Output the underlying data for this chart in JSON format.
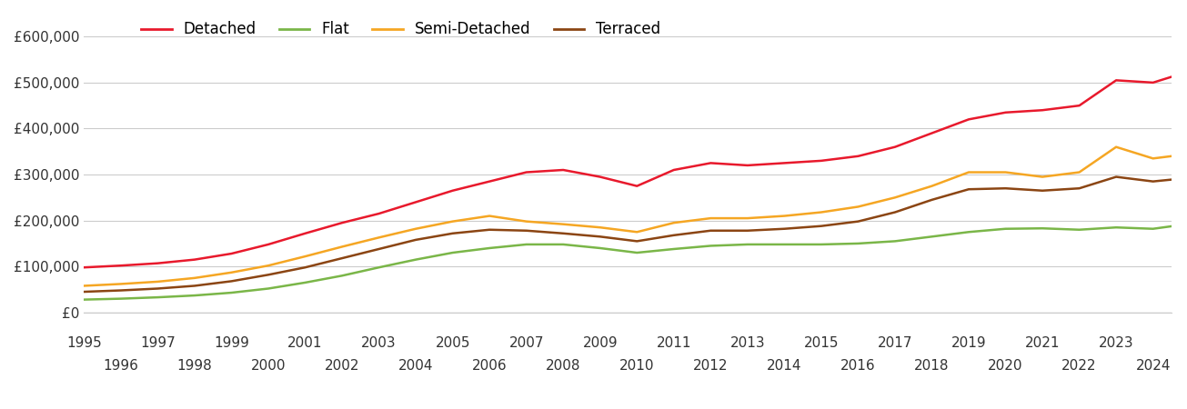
{
  "series": {
    "Detached": {
      "color": "#e8192c",
      "values": [
        98000,
        102000,
        107000,
        115000,
        128000,
        148000,
        172000,
        195000,
        215000,
        240000,
        265000,
        285000,
        305000,
        310000,
        295000,
        275000,
        310000,
        325000,
        320000,
        325000,
        330000,
        340000,
        360000,
        390000,
        420000,
        435000,
        440000,
        450000,
        505000,
        500000,
        525000
      ]
    },
    "Flat": {
      "color": "#7ab648",
      "values": [
        28000,
        30000,
        33000,
        37000,
        43000,
        52000,
        65000,
        80000,
        98000,
        115000,
        130000,
        140000,
        148000,
        148000,
        140000,
        130000,
        138000,
        145000,
        148000,
        148000,
        148000,
        150000,
        155000,
        165000,
        175000,
        182000,
        183000,
        180000,
        185000,
        182000,
        193000
      ]
    },
    "Semi-Detached": {
      "color": "#f5a623",
      "values": [
        58000,
        62000,
        67000,
        75000,
        87000,
        102000,
        122000,
        143000,
        163000,
        182000,
        198000,
        210000,
        198000,
        192000,
        185000,
        175000,
        195000,
        205000,
        205000,
        210000,
        218000,
        230000,
        250000,
        275000,
        305000,
        305000,
        295000,
        305000,
        360000,
        335000,
        345000
      ]
    },
    "Terraced": {
      "color": "#8b4513",
      "values": [
        45000,
        48000,
        52000,
        58000,
        68000,
        82000,
        98000,
        118000,
        138000,
        158000,
        172000,
        180000,
        178000,
        172000,
        165000,
        155000,
        168000,
        178000,
        178000,
        182000,
        188000,
        198000,
        218000,
        245000,
        268000,
        270000,
        265000,
        270000,
        295000,
        285000,
        293000
      ]
    }
  },
  "years": [
    1995,
    1996,
    1997,
    1998,
    1999,
    2000,
    2001,
    2002,
    2003,
    2004,
    2005,
    2006,
    2007,
    2008,
    2009,
    2010,
    2011,
    2012,
    2013,
    2014,
    2015,
    2016,
    2017,
    2018,
    2019,
    2020,
    2021,
    2022,
    2023,
    2024,
    2025
  ],
  "xlim": [
    1995,
    2024.5
  ],
  "ylim": [
    0,
    650000
  ],
  "yticks": [
    0,
    100000,
    200000,
    300000,
    400000,
    500000,
    600000
  ],
  "ytick_labels": [
    "£0",
    "£100,000",
    "£200,000",
    "£300,000",
    "£400,000",
    "£500,000",
    "£600,000"
  ],
  "xticks_top": [
    1995,
    1997,
    1999,
    2001,
    2003,
    2005,
    2007,
    2009,
    2011,
    2013,
    2015,
    2017,
    2019,
    2021,
    2023
  ],
  "xticks_bottom": [
    1996,
    1998,
    2000,
    2002,
    2004,
    2006,
    2008,
    2010,
    2012,
    2014,
    2016,
    2018,
    2020,
    2022,
    2024
  ],
  "background_color": "#ffffff",
  "grid_color": "#cccccc",
  "legend_order": [
    "Detached",
    "Flat",
    "Semi-Detached",
    "Terraced"
  ]
}
